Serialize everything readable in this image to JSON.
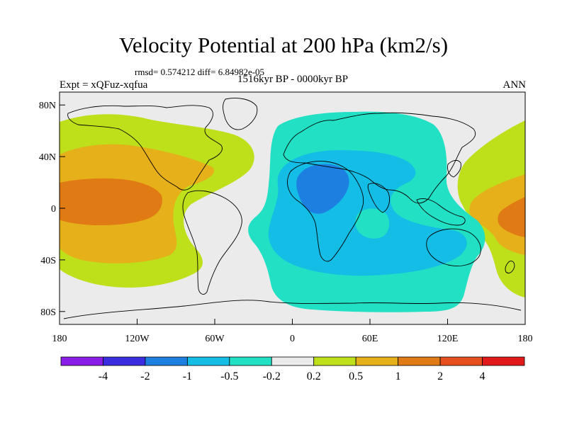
{
  "header": {
    "title": "Velocity Potential at 200 hPa (km2/s)",
    "stats": "rmsd= 0.574212 diff= 6.84982e-05",
    "period": "1516kyr BP - 0000kyr BP",
    "experiment": "Expt = xQFuz-xqfua",
    "season": "ANN"
  },
  "axes": {
    "lon_labels": [
      "180",
      "120W",
      "60W",
      "0",
      "60E",
      "120E",
      "180"
    ],
    "lon_values": [
      -180,
      -120,
      -60,
      0,
      60,
      120,
      180
    ],
    "lat_labels": [
      "80N",
      "40N",
      "0",
      "40S",
      "80S"
    ],
    "lat_values": [
      80,
      40,
      0,
      -40,
      -80
    ],
    "lon_range": [
      -180,
      180
    ],
    "lat_range": [
      -90,
      90
    ]
  },
  "colorbar": {
    "labels": [
      "-4",
      "-2",
      "-1",
      "-0.5",
      "-0.2",
      "0.2",
      "0.5",
      "1",
      "2",
      "4"
    ],
    "colors": [
      "#8a1ee6",
      "#3a2ee0",
      "#1d7fe0",
      "#14bde6",
      "#22e0c4",
      "#ebebeb",
      "#bde01a",
      "#e6b01a",
      "#e07a14",
      "#e6501e",
      "#e01a1a"
    ]
  },
  "field_colors": {
    "neutral": "#ebebeb",
    "weak_neg": "#22e0c4",
    "mod_neg": "#14bde6",
    "strong_neg": "#1d7fe0",
    "weak_pos": "#bde01a",
    "mod_pos": "#e6b01a",
    "strong_pos": "#e07a14",
    "coast": "#000000"
  }
}
